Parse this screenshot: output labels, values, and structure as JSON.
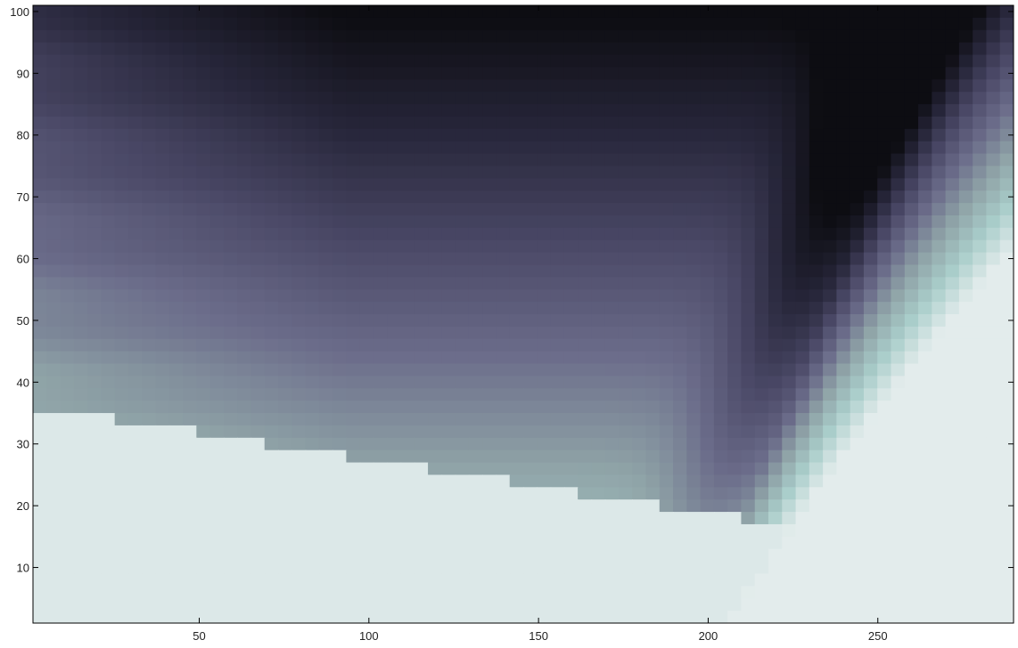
{
  "chart_data": {
    "type": "heatmap",
    "title": "",
    "xlabel": "",
    "ylabel": "",
    "xlim": [
      1,
      290
    ],
    "ylim": [
      1,
      101
    ],
    "x_ticks": [
      50,
      100,
      150,
      200,
      250
    ],
    "y_ticks": [
      10,
      20,
      30,
      40,
      50,
      60,
      70,
      80,
      90,
      100
    ],
    "colormap": "bone",
    "colormap_stops": [
      "#0d0d12",
      "#27263a",
      "#4a4866",
      "#6b6c8a",
      "#8fa3a7",
      "#a9cdca",
      "#e3ecec"
    ],
    "grid": false,
    "legend": "none"
  }
}
